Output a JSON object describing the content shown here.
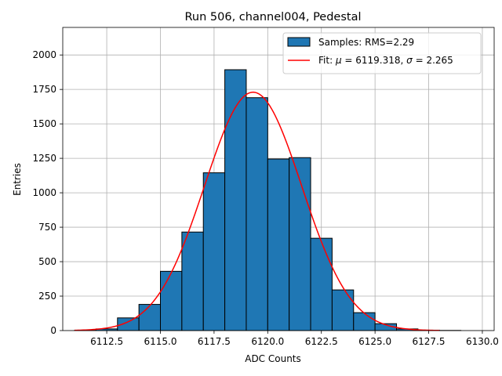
{
  "chart_data": {
    "type": "bar",
    "title": "Run 506, channel004, Pedestal",
    "xlabel": "ADC Counts",
    "ylabel": "Entries",
    "xlim": [
      6110.45,
      6130.55
    ],
    "ylim": [
      0,
      2200
    ],
    "xticks": [
      6112.5,
      6115.0,
      6117.5,
      6120.0,
      6122.5,
      6125.0,
      6127.5,
      6130.0
    ],
    "xtick_labels": [
      "6112.5",
      "6115.0",
      "6117.5",
      "6120.0",
      "6122.5",
      "6125.0",
      "6127.5",
      "6130.0"
    ],
    "yticks": [
      0,
      250,
      500,
      750,
      1000,
      1250,
      1500,
      1750,
      2000
    ],
    "ytick_labels": [
      "0",
      "250",
      "500",
      "750",
      "1000",
      "1250",
      "1500",
      "1750",
      "2000"
    ],
    "grid": true,
    "legend_position": "top-right",
    "histogram": {
      "name": "Samples: RMS=2.29",
      "color": "#1f77b4",
      "edgecolor": "#000000",
      "bin_edges": [
        6111,
        6112,
        6113,
        6114,
        6115,
        6116,
        6117,
        6118,
        6119,
        6120,
        6121,
        6122,
        6123,
        6124,
        6125,
        6126,
        6127,
        6128,
        6129,
        6130
      ],
      "counts": [
        2,
        12,
        92,
        190,
        430,
        715,
        1145,
        1893,
        1690,
        1245,
        1255,
        670,
        295,
        130,
        50,
        12,
        3,
        1,
        0
      ]
    },
    "fit": {
      "name_prefix": "Fit: ",
      "mu_symbol": "μ",
      "mu_value": " = 6119.318, ",
      "sigma_symbol": "σ",
      "sigma_value": " = 2.265",
      "color": "#ff0000",
      "mu": 6119.318,
      "sigma": 2.265,
      "amplitude": 1730,
      "x_range": [
        6111,
        6128
      ]
    }
  }
}
